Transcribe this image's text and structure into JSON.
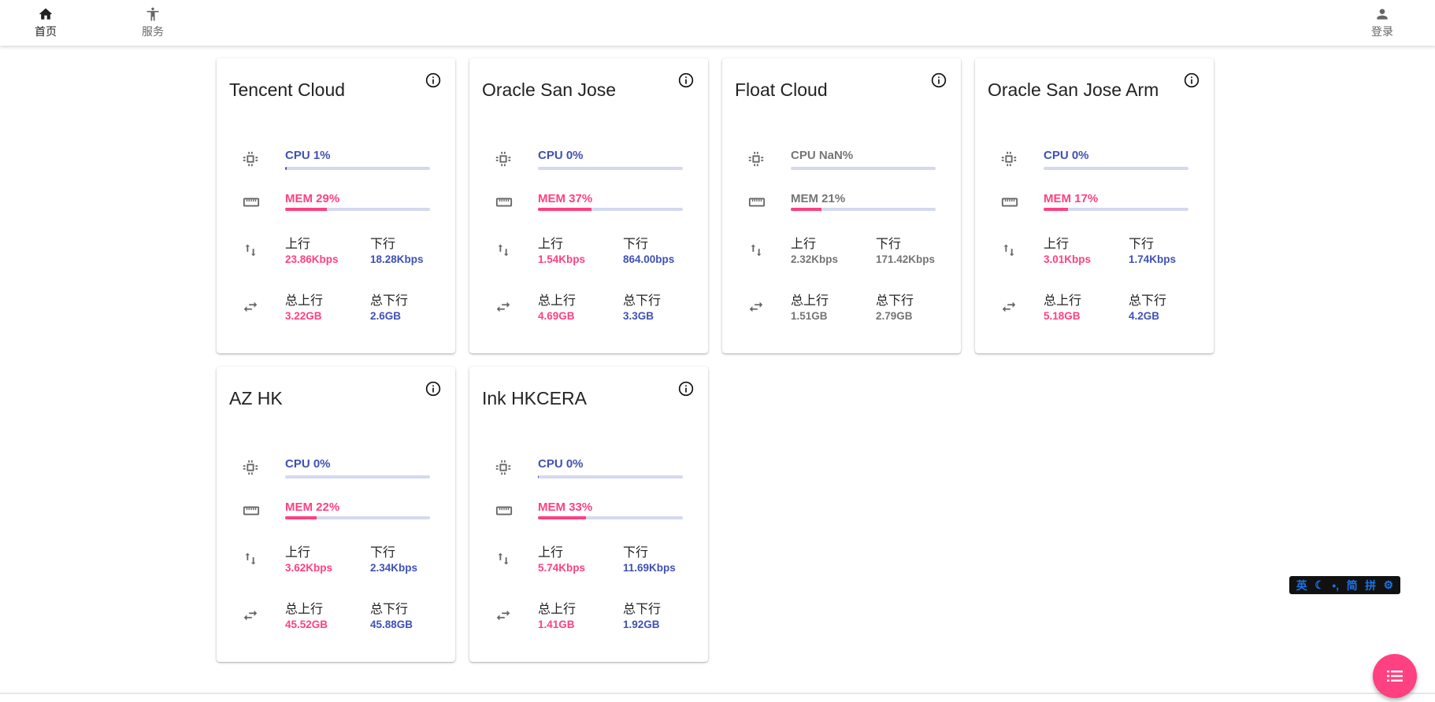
{
  "nav": {
    "home": "首页",
    "services": "服务",
    "login": "登录"
  },
  "labels": {
    "cpu": "CPU",
    "mem": "MEM",
    "up": "上行",
    "down": "下行",
    "total_up": "总上行",
    "total_down": "总下行"
  },
  "colors": {
    "cpu": "#3f51b5",
    "mem": "#ff4081",
    "offline": "#757575",
    "track": "#d4d9ef"
  },
  "servers": [
    {
      "name": "Tencent Cloud",
      "cpu_text": "CPU 1%",
      "cpu": 1,
      "mem_text": "MEM 29%",
      "mem": 29,
      "up": "23.86Kbps",
      "down": "18.28Kbps",
      "total_up": "3.22GB",
      "total_down": "2.6GB",
      "online": true
    },
    {
      "name": "Oracle San Jose",
      "cpu_text": "CPU 0%",
      "cpu": 0,
      "mem_text": "MEM 37%",
      "mem": 37,
      "up": "1.54Kbps",
      "down": "864.00bps",
      "total_up": "4.69GB",
      "total_down": "3.3GB",
      "online": true
    },
    {
      "name": "Float Cloud",
      "cpu_text": "CPU NaN%",
      "cpu": 0,
      "mem_text": "MEM 21%",
      "mem": 21,
      "up": "2.32Kbps",
      "down": "171.42Kbps",
      "total_up": "1.51GB",
      "total_down": "2.79GB",
      "online": false
    },
    {
      "name": "Oracle San Jose Arm",
      "cpu_text": "CPU 0%",
      "cpu": 0,
      "mem_text": "MEM 17%",
      "mem": 17,
      "up": "3.01Kbps",
      "down": "1.74Kbps",
      "total_up": "5.18GB",
      "total_down": "4.2GB",
      "online": true
    },
    {
      "name": "AZ HK",
      "cpu_text": "CPU 0%",
      "cpu": 0,
      "mem_text": "MEM 22%",
      "mem": 22,
      "up": "3.62Kbps",
      "down": "2.34Kbps",
      "total_up": "45.52GB",
      "total_down": "45.88GB",
      "online": true
    },
    {
      "name": "Ink HKCERA",
      "cpu_text": "CPU 0%",
      "cpu": 0.5,
      "mem_text": "MEM 33%",
      "mem": 33,
      "up": "5.74Kbps",
      "down": "11.69Kbps",
      "total_up": "1.41GB",
      "total_down": "1.92GB",
      "online": true
    }
  ],
  "ime": {
    "lang": "英",
    "moon": "moon-icon",
    "punct": "•,",
    "script": "简",
    "mode": "拼",
    "settings": "gear-icon"
  },
  "fab": {
    "icon": "list-icon"
  }
}
